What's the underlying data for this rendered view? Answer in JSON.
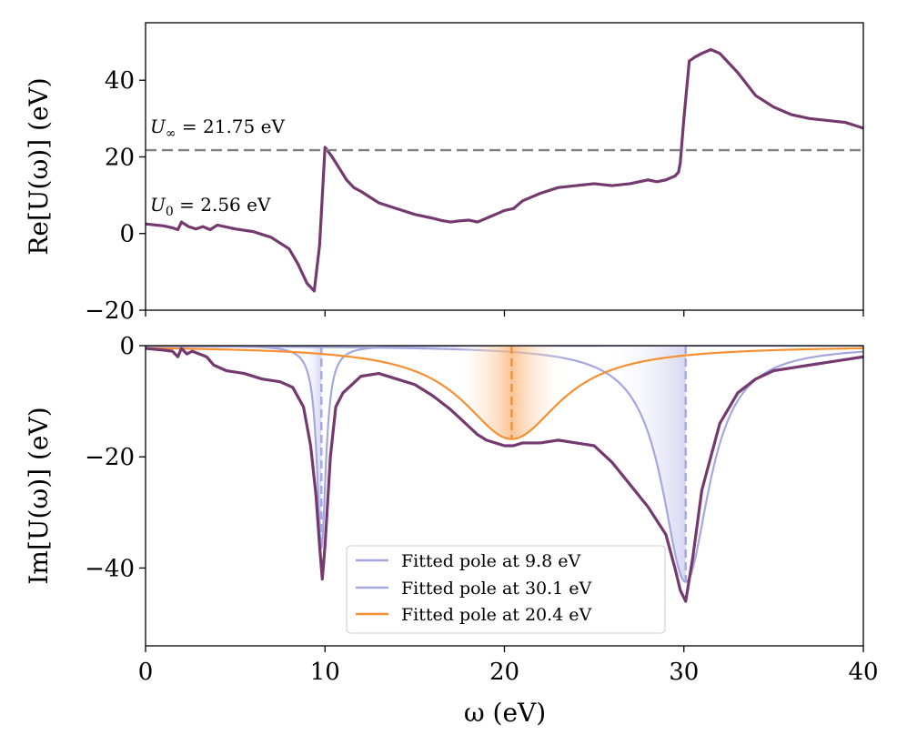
{
  "chart_data": [
    {
      "type": "line",
      "ylabel": "Re[U(ω)] (eV)",
      "xlim": [
        0,
        40
      ],
      "ylim": [
        -20,
        55
      ],
      "yticks": [
        -20,
        0,
        20,
        40
      ],
      "ytick_labels": [
        "−20",
        "0",
        "20",
        "40"
      ],
      "series": [
        {
          "name": "Re[U(ω)]",
          "color": "#74396f",
          "x": [
            0,
            1,
            1.5,
            1.8,
            2.0,
            2.4,
            2.8,
            3.2,
            3.6,
            4,
            5,
            6,
            7,
            8,
            8.5,
            9,
            9.4,
            9.7,
            10.0,
            10.4,
            10.8,
            11.2,
            11.6,
            12,
            13,
            14,
            15,
            16,
            16.5,
            17,
            17.5,
            18,
            18.5,
            19,
            19.5,
            20,
            20.5,
            21,
            21.5,
            22,
            23,
            24,
            25,
            26,
            27,
            28,
            28.5,
            29,
            29.5,
            29.7,
            29.8,
            30.0,
            30.3,
            30.6,
            31,
            31.5,
            32,
            33,
            34,
            35,
            36,
            37,
            38,
            39,
            40
          ],
          "y": [
            2.5,
            2.0,
            1.5,
            1.0,
            3.0,
            1.8,
            1.2,
            1.8,
            1.0,
            2.2,
            1.2,
            0.5,
            -1,
            -4,
            -8,
            -13,
            -15,
            -3,
            22.5,
            20,
            17,
            14,
            12,
            11,
            8,
            6.5,
            5,
            4,
            3.4,
            3.0,
            3.3,
            3.5,
            3.0,
            4.0,
            5.0,
            6.0,
            6.5,
            8.5,
            9.5,
            10.5,
            12,
            12.5,
            13,
            12.5,
            13,
            14,
            13.5,
            14,
            15,
            16,
            18.5,
            30,
            45,
            46,
            47,
            48,
            47,
            42,
            36,
            33,
            31,
            30,
            29.5,
            29,
            27.5
          ]
        },
        {
          "name": "U_inf reference",
          "color": "#808080",
          "dashed": true,
          "x": [
            0,
            40
          ],
          "y": [
            21.75,
            21.75
          ]
        }
      ],
      "annotations": [
        {
          "label": "U",
          "sub": "∞",
          "value_text": " = 21.75 eV",
          "x": 0.2,
          "y": 24
        },
        {
          "label": "U",
          "sub": "0",
          "value_text": " = 2.56 eV",
          "x": 0.2,
          "y": 5.5
        }
      ]
    },
    {
      "type": "line",
      "xlabel": "ω (eV)",
      "ylabel": "Im[U(ω)] (eV)",
      "xlim": [
        0,
        40
      ],
      "ylim": [
        -54,
        0
      ],
      "xticks": [
        0,
        10,
        20,
        30,
        40
      ],
      "yticks": [
        -40,
        -20,
        0
      ],
      "ytick_labels": [
        "−40",
        "−20",
        "0"
      ],
      "series": [
        {
          "name": "Im[U(ω)]",
          "color": "#74396f",
          "x": [
            0,
            1,
            1.5,
            1.8,
            2.0,
            2.3,
            2.6,
            3.0,
            3.4,
            3.8,
            4.5,
            5.5,
            6.5,
            7.5,
            8.2,
            8.8,
            9.2,
            9.5,
            9.7,
            9.85,
            10.0,
            10.3,
            10.6,
            11.0,
            11.5,
            12,
            13,
            14,
            15,
            16,
            17,
            17.5,
            18,
            18.5,
            19,
            19.5,
            20,
            20.5,
            21,
            22,
            23,
            24,
            25,
            26,
            27,
            28,
            29,
            29.5,
            29.8,
            30.1,
            30.5,
            31,
            32,
            33,
            34,
            35,
            36,
            37,
            38,
            39,
            40
          ],
          "y": [
            -0.5,
            -0.8,
            -1.0,
            -2.0,
            -0.5,
            -1.5,
            -1.0,
            -1.5,
            -2.0,
            -3.5,
            -4.5,
            -5.0,
            -6.0,
            -6.5,
            -7.5,
            -11,
            -18,
            -27,
            -36,
            -42,
            -36,
            -20,
            -11,
            -8.5,
            -7,
            -5.5,
            -5,
            -6,
            -7,
            -9,
            -11.5,
            -13,
            -14.5,
            -16,
            -17,
            -17.5,
            -18,
            -18,
            -17.5,
            -17.5,
            -17,
            -17.5,
            -18,
            -21,
            -25,
            -29,
            -34,
            -40,
            -44,
            -46,
            -38,
            -26,
            -14,
            -8.5,
            -6,
            -4.5,
            -4,
            -3.5,
            -3,
            -2.5,
            -2
          ]
        }
      ],
      "fitted_poles": [
        {
          "name": "Fitted pole at 9.8 eV",
          "center": 9.8,
          "width": 0.3,
          "depth": 36.5,
          "color": "#a5a7de"
        },
        {
          "name": "Fitted pole at 30.1 eV",
          "center": 30.1,
          "width": 1.6,
          "depth": 42.5,
          "color": "#a5a7de"
        },
        {
          "name": "Fitted pole at 20.4 eV",
          "center": 20.4,
          "width": 3.3,
          "depth": 16.8,
          "color": "#f88f30"
        }
      ],
      "legend": {
        "placement": "lower-center",
        "entries": [
          "Fitted pole at 9.8 eV",
          "Fitted pole at 30.1 eV",
          "Fitted pole at 20.4 eV"
        ]
      }
    }
  ]
}
